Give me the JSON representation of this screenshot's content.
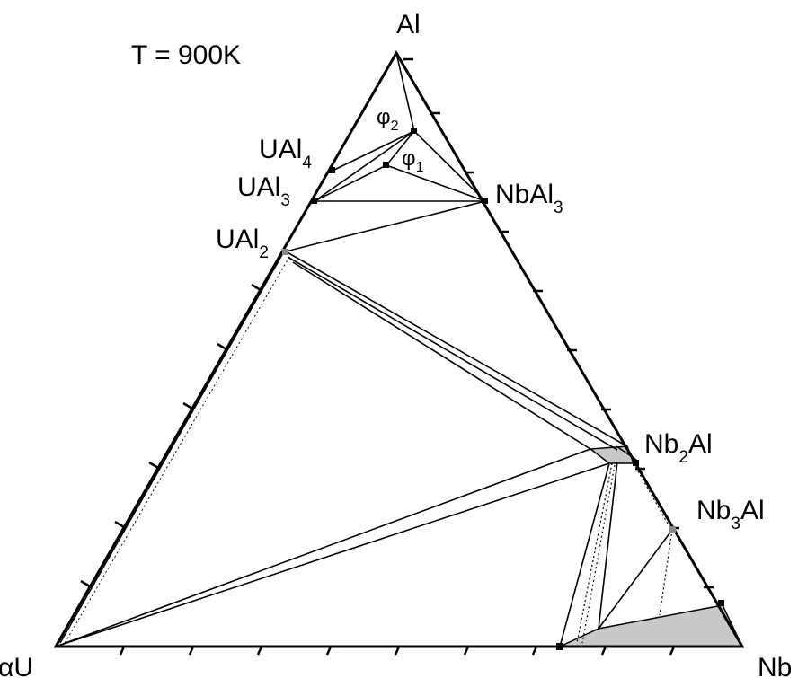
{
  "diagram": {
    "title": "T = 900K",
    "vertices": {
      "top": "Al",
      "left": "αU",
      "right": "Nb"
    },
    "phases": {
      "ual4": {
        "base": "UAl",
        "sub": "4"
      },
      "ual3": {
        "base": "UAl",
        "sub": "3"
      },
      "ual2": {
        "base": "UAl",
        "sub": "2"
      },
      "nbal3": {
        "base": "NbAl",
        "sub": "3"
      },
      "nb2al": {
        "pre": "Nb",
        "sub": "2",
        "post": "Al"
      },
      "nb3al": {
        "pre": "Nb",
        "sub": "3",
        "post": "Al"
      },
      "phi1": {
        "base": "φ",
        "sub": "1"
      },
      "phi2": {
        "base": "φ",
        "sub": "2"
      }
    },
    "colors": {
      "line": "#000000",
      "region_fill": "#c8c8c8"
    }
  }
}
